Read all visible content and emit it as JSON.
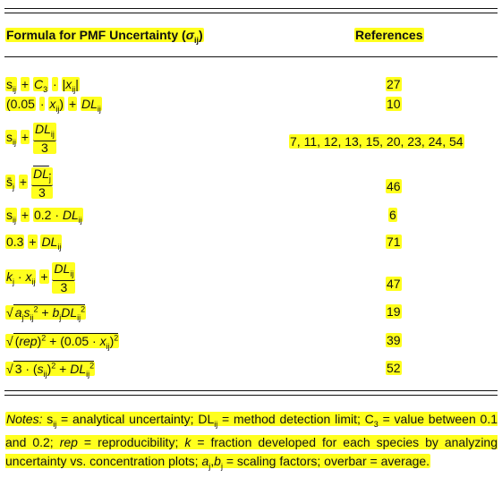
{
  "header": {
    "formula": "Formula for PMF Uncertainty (σij)",
    "references": "References"
  },
  "rows": [
    {
      "formula": "sij + C3 · |xij|",
      "refs": "27"
    },
    {
      "formula": "(0.05 · xij) + DLij",
      "refs": "10"
    },
    {
      "formula": "sij + DLij/3",
      "refs": "7, 11, 12, 13, 15, 20, 23, 24, 54"
    },
    {
      "formula": "s̄j + D̄Lj/3",
      "refs": "46"
    },
    {
      "formula": "sij + 0.2 · DLij",
      "refs": "6"
    },
    {
      "formula": "0.3 + DLij",
      "refs": "71"
    },
    {
      "formula": "kj · xij + DLij/3",
      "refs": "47"
    },
    {
      "formula": "√(aj sij² + bj DLij²)",
      "refs": "19"
    },
    {
      "formula": "√((rep)² + (0.05 · xij)²)",
      "refs": "39"
    },
    {
      "formula": "√(3 · (sij)² + DLij²)",
      "refs": "52"
    }
  ],
  "notes": "Notes: sij = analytical uncertainty; DLij = method detection limit; C3 = value between 0.1 and 0.2; rep = reproducibility; k = fraction developed for each species by analyzing uncertainty vs. concentration plots; aj,bj = scaling factors; overbar = average.",
  "colors": {
    "highlight": "#ffff1e",
    "rule": "#111111"
  }
}
